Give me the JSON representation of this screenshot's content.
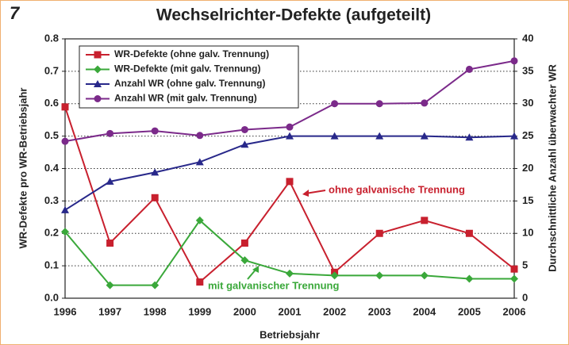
{
  "figure_number": "7",
  "chart_data": {
    "type": "line",
    "title": "Wechselrichter-Defekte (aufgeteilt)",
    "x_label": "Betriebsjahr",
    "y_label": "WR-Defekte pro WR-Betriebsjahr",
    "y2_label": "Durchschnittliche Anzahl überwachter WR",
    "categories": [
      "1996",
      "1997",
      "1998",
      "1999",
      "2000",
      "2001",
      "2002",
      "2003",
      "2004",
      "2005",
      "2006"
    ],
    "series": [
      {
        "name": "WR-Defekte (ohne galv. Trennung)",
        "color": "#c8202e",
        "marker": "square",
        "axis": "y",
        "values": [
          0.59,
          0.17,
          0.31,
          0.05,
          0.17,
          0.36,
          0.08,
          0.2,
          0.24,
          0.2,
          0.09
        ]
      },
      {
        "name": "WR-Defekte (mit galv. Trennung)",
        "color": "#3aa83a",
        "marker": "diamond",
        "axis": "y",
        "values": [
          0.205,
          0.04,
          0.04,
          0.24,
          0.117,
          0.076,
          0.07,
          0.07,
          0.07,
          0.06,
          0.06
        ]
      },
      {
        "name": "Anzahl WR (ohne galv. Trennung)",
        "color": "#28288a",
        "marker": "triangle",
        "axis": "y2",
        "values": [
          13.6,
          18,
          19.4,
          21,
          23.7,
          25,
          25,
          25,
          25,
          24.8,
          25
        ]
      },
      {
        "name": "Anzahl WR (mit galv. Trennung)",
        "color": "#7b2a8a",
        "marker": "circle",
        "axis": "y2",
        "values": [
          24.2,
          25.4,
          25.8,
          25.1,
          26,
          26.4,
          30,
          30,
          30.1,
          35.3,
          36.6
        ]
      }
    ],
    "annotations": [
      "ohne galvanische Trennung",
      "mit galvanischer Trennung"
    ],
    "ylim": [
      0,
      0.8
    ],
    "yticks": [
      {
        "value": 0,
        "label": "0.0"
      },
      0.1,
      0.2,
      0.3,
      0.4,
      0.5,
      0.6,
      0.7,
      0.8
    ],
    "y2lim": [
      0,
      40
    ],
    "y2ticks": [
      0,
      5,
      10,
      15,
      20,
      25,
      30,
      35,
      40
    ],
    "grid": true,
    "legend": "upper left"
  }
}
